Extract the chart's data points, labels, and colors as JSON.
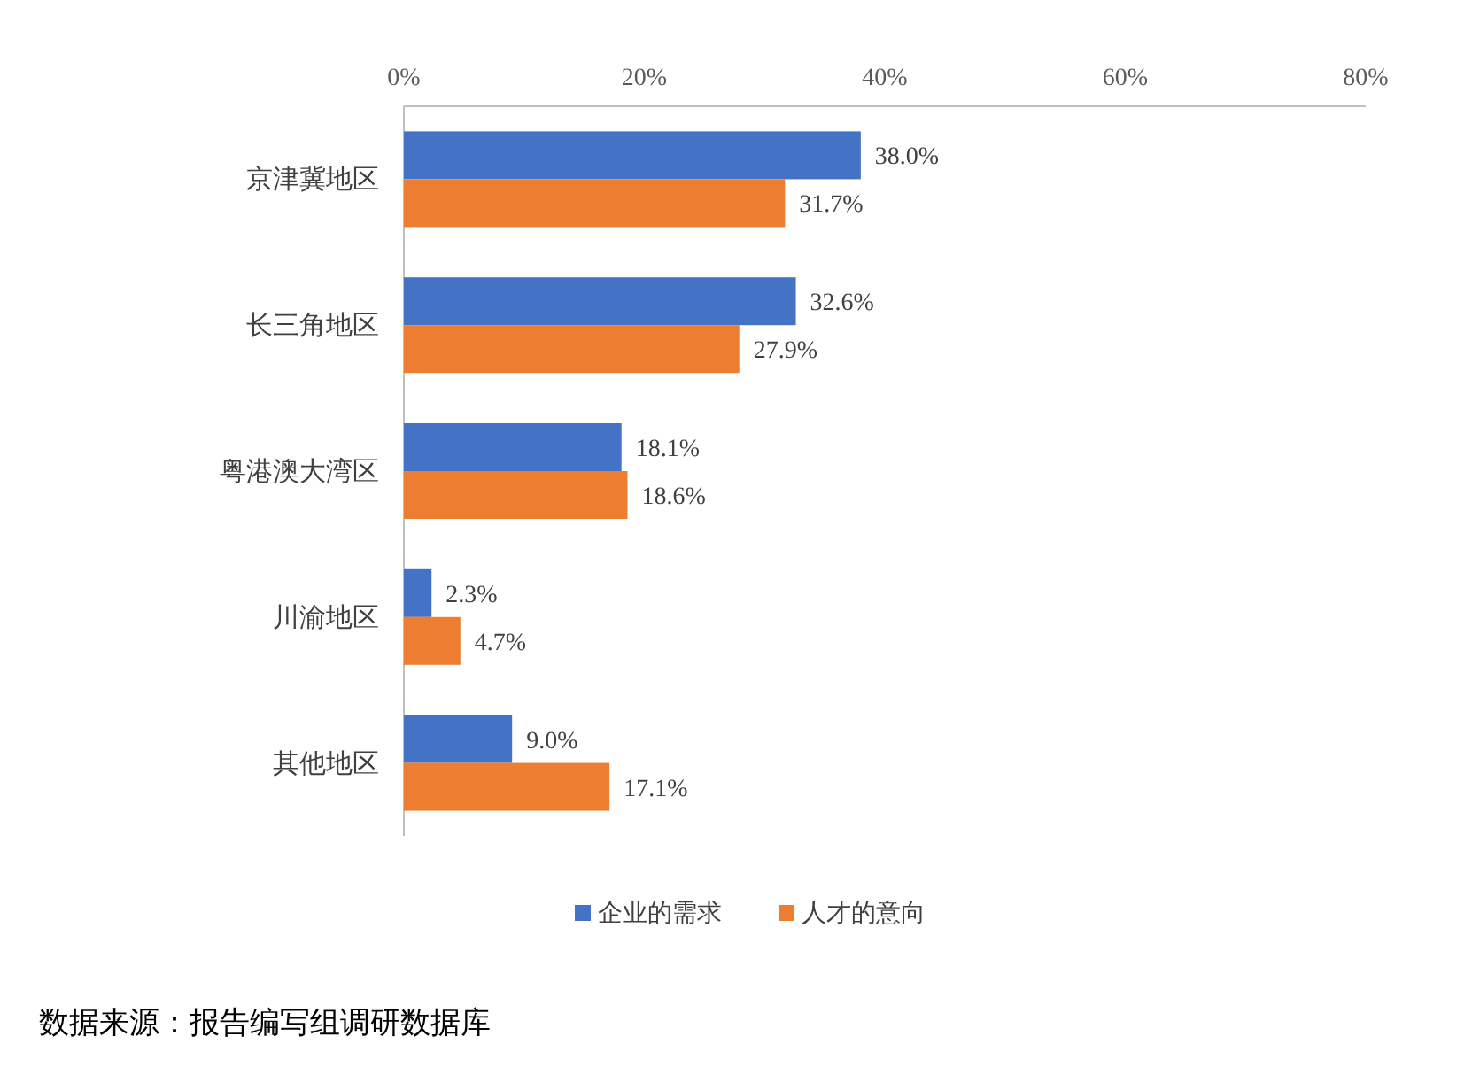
{
  "chart_data": {
    "type": "bar",
    "orientation": "horizontal",
    "categories": [
      "京津冀地区",
      "长三角地区",
      "粤港澳大湾区",
      "川渝地区",
      "其他地区"
    ],
    "series": [
      {
        "name": "企业的需求",
        "color": "#4472c4",
        "values": [
          38.0,
          32.6,
          18.1,
          2.3,
          9.0
        ],
        "value_labels": [
          "38.0%",
          "32.6%",
          "18.1%",
          "2.3%",
          "9.0%"
        ]
      },
      {
        "name": "人才的意向",
        "color": "#ed7d31",
        "values": [
          31.7,
          27.9,
          18.6,
          4.7,
          17.1
        ],
        "value_labels": [
          "31.7%",
          "27.9%",
          "18.6%",
          "4.7%",
          "17.1%"
        ]
      }
    ],
    "xlim": [
      0,
      80
    ],
    "xticks": [
      {
        "value": 0,
        "label": "0%"
      },
      {
        "value": 20,
        "label": "20%"
      },
      {
        "value": 40,
        "label": "40%"
      },
      {
        "value": 60,
        "label": "60%"
      },
      {
        "value": 80,
        "label": "80%"
      }
    ],
    "legend": "bottom",
    "annotations": [
      "数据来源：报告编写组调研数据库"
    ]
  }
}
